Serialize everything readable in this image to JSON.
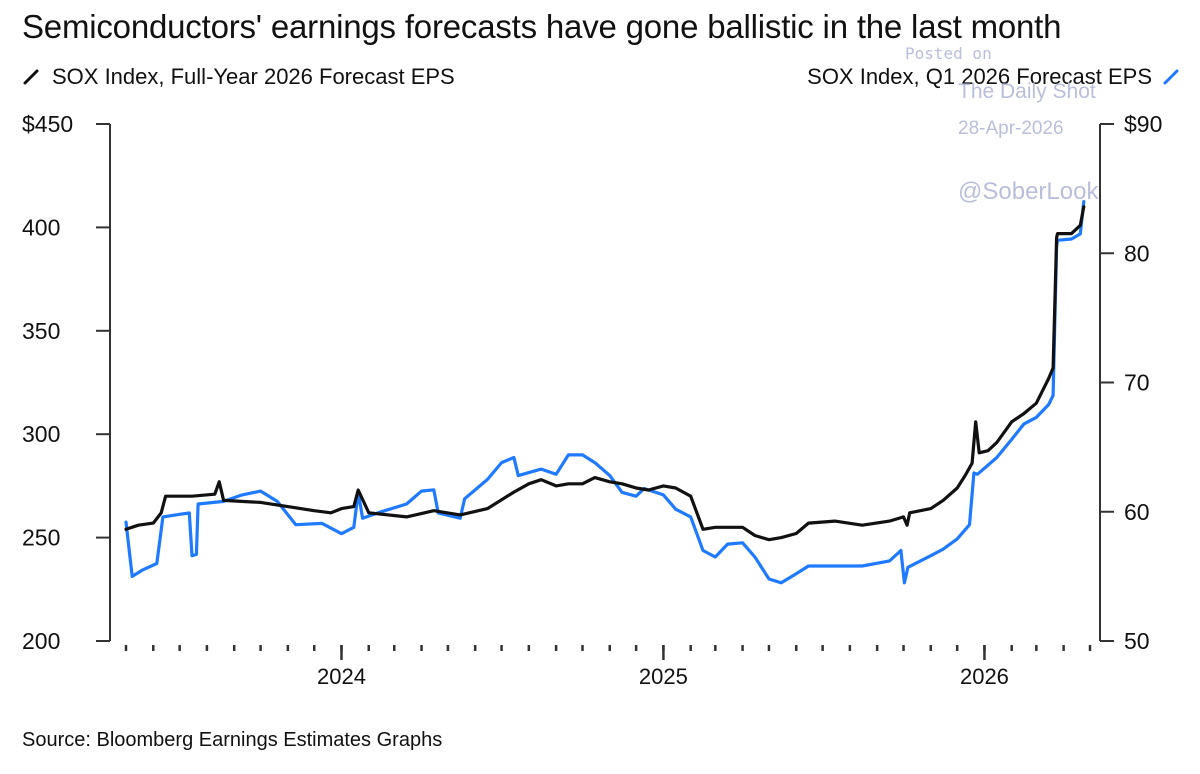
{
  "title": "Semiconductors' earnings forecasts have gone ballistic in the last month",
  "legend": {
    "left": "SOX Index, Full-Year 2026 Forecast EPS",
    "right": "SOX Index, Q1 2026 Forecast EPS"
  },
  "source": "Source: Bloomberg Earnings Estimates Graphs",
  "watermark": {
    "line1": "Posted on",
    "line2": "The Daily Shot",
    "line3": "28-Apr-2026",
    "line4": "@SoberLook"
  },
  "colors": {
    "full_year": "#111111",
    "q1": "#1f7aff",
    "axis": "#333333"
  },
  "chart_data": {
    "type": "line",
    "x_ticks": [
      "2024",
      "2025",
      "2026"
    ],
    "y_left": {
      "ticks": [
        "$450",
        "400",
        "350",
        "300",
        "250",
        "200"
      ],
      "range": [
        200,
        450
      ]
    },
    "y_right": {
      "ticks": [
        "$90",
        "80",
        "70",
        "60",
        "50"
      ],
      "range": [
        50,
        90
      ]
    },
    "grid": false,
    "series": [
      {
        "name": "SOX Index, Full-Year 2026 Forecast EPS",
        "axis": "left",
        "color": "#111111",
        "points": [
          [
            "2023-05-01",
            254
          ],
          [
            "2023-05-15",
            256
          ],
          [
            "2023-06-01",
            257
          ],
          [
            "2023-06-10",
            262
          ],
          [
            "2023-06-15",
            270
          ],
          [
            "2023-07-15",
            270
          ],
          [
            "2023-08-10",
            271
          ],
          [
            "2023-08-15",
            277
          ],
          [
            "2023-08-20",
            268
          ],
          [
            "2023-10-01",
            267
          ],
          [
            "2023-11-01",
            265
          ],
          [
            "2023-12-01",
            263
          ],
          [
            "2023-12-20",
            262
          ],
          [
            "2024-01-01",
            264
          ],
          [
            "2024-01-15",
            265
          ],
          [
            "2024-01-20",
            273
          ],
          [
            "2024-02-01",
            262
          ],
          [
            "2024-03-15",
            260
          ],
          [
            "2024-04-15",
            263
          ],
          [
            "2024-05-15",
            261
          ],
          [
            "2024-06-15",
            264
          ],
          [
            "2024-07-15",
            272
          ],
          [
            "2024-08-01",
            276
          ],
          [
            "2024-08-15",
            278
          ],
          [
            "2024-09-01",
            275
          ],
          [
            "2024-09-15",
            276
          ],
          [
            "2024-10-01",
            276
          ],
          [
            "2024-10-15",
            279
          ],
          [
            "2024-11-01",
            277
          ],
          [
            "2024-11-15",
            276
          ],
          [
            "2024-12-01",
            274
          ],
          [
            "2024-12-15",
            273
          ],
          [
            "2025-01-01",
            275
          ],
          [
            "2025-01-15",
            274
          ],
          [
            "2025-02-01",
            270
          ],
          [
            "2025-02-15",
            254
          ],
          [
            "2025-03-01",
            255
          ],
          [
            "2025-04-01",
            255
          ],
          [
            "2025-04-15",
            251
          ],
          [
            "2025-05-01",
            249
          ],
          [
            "2025-05-15",
            250
          ],
          [
            "2025-06-01",
            252
          ],
          [
            "2025-06-15",
            257
          ],
          [
            "2025-07-15",
            258
          ],
          [
            "2025-08-15",
            256
          ],
          [
            "2025-09-15",
            258
          ],
          [
            "2025-10-01",
            260
          ],
          [
            "2025-10-05",
            256
          ],
          [
            "2025-10-08",
            262
          ],
          [
            "2025-11-01",
            264
          ],
          [
            "2025-11-15",
            268
          ],
          [
            "2025-12-01",
            274
          ],
          [
            "2025-12-10",
            280
          ],
          [
            "2025-12-18",
            286
          ],
          [
            "2025-12-22",
            306
          ],
          [
            "2025-12-26",
            291
          ],
          [
            "2026-01-05",
            292
          ],
          [
            "2026-01-15",
            296
          ],
          [
            "2026-02-01",
            306
          ],
          [
            "2026-02-15",
            310
          ],
          [
            "2026-03-01",
            315
          ],
          [
            "2026-03-15",
            327
          ],
          [
            "2026-03-20",
            332
          ],
          [
            "2026-03-24",
            395
          ],
          [
            "2026-03-25",
            397
          ],
          [
            "2026-04-10",
            397
          ],
          [
            "2026-04-20",
            401
          ],
          [
            "2026-04-24",
            410
          ]
        ]
      },
      {
        "name": "SOX Index, Q1 2026 Forecast EPS",
        "axis": "right",
        "color": "#1f7aff",
        "points": [
          [
            "2023-05-01",
            59.2
          ],
          [
            "2023-05-08",
            55.0
          ],
          [
            "2023-05-20",
            55.5
          ],
          [
            "2023-06-05",
            56.0
          ],
          [
            "2023-06-12",
            59.6
          ],
          [
            "2023-07-01",
            59.8
          ],
          [
            "2023-07-12",
            59.9
          ],
          [
            "2023-07-15",
            56.6
          ],
          [
            "2023-07-20",
            56.7
          ],
          [
            "2023-07-22",
            60.6
          ],
          [
            "2023-08-20",
            60.8
          ],
          [
            "2023-09-10",
            61.3
          ],
          [
            "2023-10-01",
            61.6
          ],
          [
            "2023-10-20",
            60.8
          ],
          [
            "2023-11-10",
            59.0
          ],
          [
            "2023-12-10",
            59.1
          ],
          [
            "2024-01-01",
            58.3
          ],
          [
            "2024-01-15",
            58.8
          ],
          [
            "2024-01-20",
            61.5
          ],
          [
            "2024-01-25",
            59.5
          ],
          [
            "2024-02-15",
            60.0
          ],
          [
            "2024-03-15",
            60.6
          ],
          [
            "2024-04-01",
            61.6
          ],
          [
            "2024-04-15",
            61.7
          ],
          [
            "2024-04-20",
            59.9
          ],
          [
            "2024-05-15",
            59.5
          ],
          [
            "2024-05-20",
            61.0
          ],
          [
            "2024-06-15",
            62.5
          ],
          [
            "2024-07-01",
            63.8
          ],
          [
            "2024-07-15",
            64.2
          ],
          [
            "2024-07-20",
            62.8
          ],
          [
            "2024-08-15",
            63.3
          ],
          [
            "2024-09-01",
            62.9
          ],
          [
            "2024-09-15",
            64.4
          ],
          [
            "2024-10-01",
            64.4
          ],
          [
            "2024-10-15",
            63.8
          ],
          [
            "2024-11-01",
            62.8
          ],
          [
            "2024-11-15",
            61.5
          ],
          [
            "2024-12-01",
            61.2
          ],
          [
            "2024-12-10",
            61.8
          ],
          [
            "2025-01-01",
            61.3
          ],
          [
            "2025-01-15",
            60.2
          ],
          [
            "2025-02-01",
            59.6
          ],
          [
            "2025-02-15",
            57.0
          ],
          [
            "2025-03-01",
            56.5
          ],
          [
            "2025-03-15",
            57.5
          ],
          [
            "2025-04-01",
            57.6
          ],
          [
            "2025-04-15",
            56.5
          ],
          [
            "2025-05-01",
            54.8
          ],
          [
            "2025-05-15",
            54.5
          ],
          [
            "2025-06-01",
            55.2
          ],
          [
            "2025-06-15",
            55.8
          ],
          [
            "2025-07-15",
            55.8
          ],
          [
            "2025-08-15",
            55.8
          ],
          [
            "2025-09-15",
            56.2
          ],
          [
            "2025-09-28",
            57.0
          ],
          [
            "2025-10-02",
            54.5
          ],
          [
            "2025-10-06",
            55.7
          ],
          [
            "2025-11-01",
            56.6
          ],
          [
            "2025-11-15",
            57.1
          ],
          [
            "2025-12-01",
            57.9
          ],
          [
            "2025-12-15",
            59.0
          ],
          [
            "2025-12-20",
            63.0
          ],
          [
            "2025-12-24",
            62.9
          ],
          [
            "2026-01-05",
            63.6
          ],
          [
            "2026-01-15",
            64.2
          ],
          [
            "2026-02-01",
            65.6
          ],
          [
            "2026-02-15",
            66.8
          ],
          [
            "2026-03-01",
            67.3
          ],
          [
            "2026-03-15",
            68.3
          ],
          [
            "2026-03-20",
            69.0
          ],
          [
            "2026-03-24",
            80.5
          ],
          [
            "2026-03-25",
            81.0
          ],
          [
            "2026-04-10",
            81.1
          ],
          [
            "2026-04-20",
            81.5
          ],
          [
            "2026-04-24",
            84.0
          ]
        ]
      }
    ]
  }
}
